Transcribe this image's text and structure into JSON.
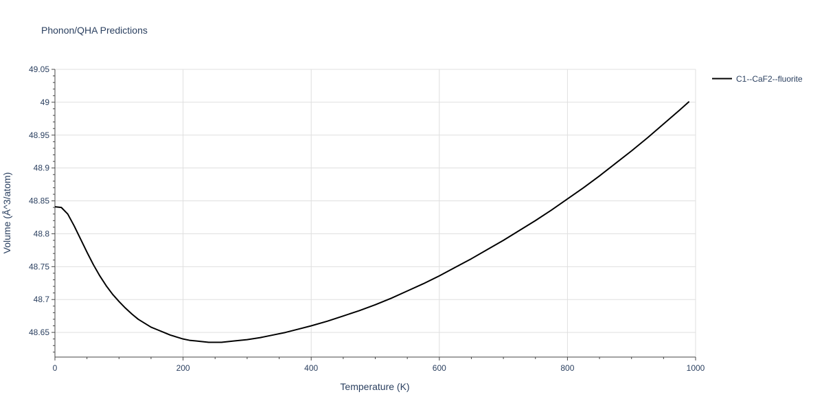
{
  "chart_data": {
    "type": "line",
    "title": "Phonon/QHA Predictions",
    "xlabel": "Temperature (K)",
    "ylabel": "Volume (Å^3/atom)",
    "xlim": [
      0,
      1000
    ],
    "ylim": [
      48.6125,
      49.05
    ],
    "x_ticks": [
      0,
      200,
      400,
      600,
      800,
      1000
    ],
    "y_ticks": [
      48.65,
      48.7,
      48.75,
      48.8,
      48.85,
      48.9,
      48.95,
      49,
      49.05
    ],
    "x_tick_labels": [
      "0",
      "200",
      "400",
      "600",
      "800",
      "1000"
    ],
    "y_tick_labels": [
      "48.65",
      "48.7",
      "48.75",
      "48.8",
      "48.85",
      "48.9",
      "48.95",
      "49",
      "49.05"
    ],
    "grid": true,
    "legend_position": "top-right",
    "series": [
      {
        "name": "C1--CaF2--fluorite",
        "color": "#000000",
        "x": [
          0,
          10,
          20,
          30,
          40,
          50,
          60,
          70,
          80,
          90,
          100,
          110,
          120,
          130,
          140,
          150,
          160,
          170,
          180,
          190,
          200,
          210,
          220,
          230,
          240,
          250,
          260,
          270,
          280,
          300,
          320,
          340,
          360,
          380,
          400,
          425,
          450,
          475,
          500,
          525,
          550,
          575,
          600,
          625,
          650,
          675,
          700,
          725,
          750,
          775,
          800,
          825,
          850,
          875,
          900,
          925,
          950,
          975,
          990
        ],
        "y": [
          48.841,
          48.84,
          48.83,
          48.812,
          48.792,
          48.772,
          48.753,
          48.736,
          48.721,
          48.708,
          48.697,
          48.687,
          48.678,
          48.67,
          48.664,
          48.658,
          48.654,
          48.65,
          48.646,
          48.643,
          48.64,
          48.638,
          48.637,
          48.636,
          48.635,
          48.635,
          48.635,
          48.636,
          48.637,
          48.639,
          48.642,
          48.646,
          48.65,
          48.655,
          48.66,
          48.667,
          48.675,
          48.683,
          48.692,
          48.702,
          48.713,
          48.724,
          48.736,
          48.749,
          48.762,
          48.776,
          48.79,
          48.805,
          48.82,
          48.836,
          48.853,
          48.87,
          48.888,
          48.907,
          48.926,
          48.946,
          48.967,
          48.988,
          49.001
        ]
      }
    ]
  }
}
